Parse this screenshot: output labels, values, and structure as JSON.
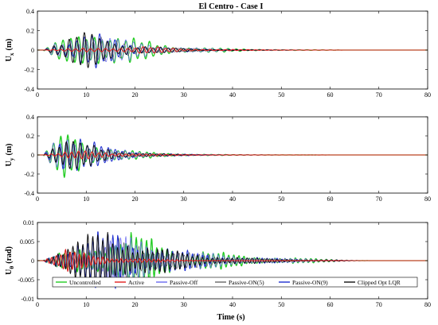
{
  "figure": {
    "title": "El Centro - Case I",
    "xlabel": "Time (s)"
  },
  "legend": {
    "placement": "bottom-center",
    "entries": [
      "Uncontrolled",
      "Active",
      "Passive-Off",
      "Passive-ON(5)",
      "Passive-ON(9)",
      "Clipped Opt LQR"
    ]
  },
  "chart_data": [
    {
      "type": "line",
      "ylabel_main": "U",
      "ylabel_sub": "x",
      "ylabel_unit": "(m)",
      "xlim": [
        0,
        80
      ],
      "ylim": [
        -0.4,
        0.4
      ],
      "x_ticks": [
        0,
        10,
        20,
        30,
        40,
        50,
        60,
        70,
        80
      ],
      "y_ticks": [
        "-0.4",
        "-0.2",
        "0",
        "0.2",
        "0.4"
      ],
      "y_tick_values": [
        -0.4,
        -0.2,
        0,
        0.2,
        0.4
      ],
      "grid": false,
      "duration": 60,
      "series": [
        {
          "name": "Uncontrolled",
          "color": "#22cc22",
          "width": 1.3,
          "freq": 0.62,
          "phase": 0.0,
          "peak_t": 12,
          "peak_amp": 0.26,
          "rise": 3.0,
          "decay": 10.0
        },
        {
          "name": "Passive-Off",
          "color": "#6a6af0",
          "width": 0.7,
          "freq": 0.62,
          "phase": 0.18,
          "peak_t": 12,
          "peak_amp": 0.22,
          "rise": 3.0,
          "decay": 9.5
        },
        {
          "name": "Passive-ON(5)",
          "color": "#666666",
          "width": 0.7,
          "freq": 0.63,
          "phase": 0.3,
          "peak_t": 11,
          "peak_amp": 0.18,
          "rise": 2.8,
          "decay": 8.5
        },
        {
          "name": "Passive-ON(9)",
          "color": "#1f2fd0",
          "width": 1.0,
          "freq": 0.64,
          "phase": 0.45,
          "peak_t": 11,
          "peak_amp": 0.2,
          "rise": 2.8,
          "decay": 8.0
        },
        {
          "name": "Clipped Opt LQR",
          "color": "#111111",
          "width": 1.0,
          "freq": 0.64,
          "phase": 0.6,
          "peak_t": 10,
          "peak_amp": 0.21,
          "rise": 2.5,
          "decay": 8.0
        },
        {
          "name": "Active",
          "color": "#e02020",
          "width": 1.1,
          "freq": 0.65,
          "phase": 1.1,
          "peak_t": 22,
          "peak_amp": 0.04,
          "rise": 8.0,
          "decay": 10.0
        }
      ]
    },
    {
      "type": "line",
      "ylabel_main": "U",
      "ylabel_sub": "y",
      "ylabel_unit": "(m)",
      "xlim": [
        0,
        80
      ],
      "ylim": [
        -0.4,
        0.4
      ],
      "x_ticks": [
        0,
        10,
        20,
        30,
        40,
        50,
        60,
        70,
        80
      ],
      "y_ticks": [
        "-0.4",
        "-0.2",
        "0",
        "0.2",
        "0.4"
      ],
      "y_tick_values": [
        -0.4,
        -0.2,
        0,
        0.2,
        0.4
      ],
      "grid": false,
      "duration": 60,
      "series": [
        {
          "name": "Uncontrolled",
          "color": "#22cc22",
          "width": 1.3,
          "freq": 0.68,
          "phase": 0.0,
          "peak_t": 6,
          "peak_amp": 0.27,
          "rise": 2.5,
          "decay": 8.0
        },
        {
          "name": "Passive-Off",
          "color": "#6a6af0",
          "width": 0.7,
          "freq": 0.68,
          "phase": 0.2,
          "peak_t": 6,
          "peak_amp": 0.24,
          "rise": 2.5,
          "decay": 7.5
        },
        {
          "name": "Passive-ON(5)",
          "color": "#666666",
          "width": 0.7,
          "freq": 0.69,
          "phase": 0.35,
          "peak_t": 6,
          "peak_amp": 0.2,
          "rise": 2.5,
          "decay": 7.0
        },
        {
          "name": "Passive-ON(9)",
          "color": "#1f2fd0",
          "width": 1.0,
          "freq": 0.7,
          "phase": 0.5,
          "peak_t": 6,
          "peak_amp": 0.3,
          "rise": 2.5,
          "decay": 7.0
        },
        {
          "name": "Clipped Opt LQR",
          "color": "#111111",
          "width": 1.0,
          "freq": 0.7,
          "phase": 0.7,
          "peak_t": 6,
          "peak_amp": 0.22,
          "rise": 2.5,
          "decay": 7.0
        },
        {
          "name": "Active",
          "color": "#e02020",
          "width": 1.1,
          "freq": 0.72,
          "phase": 1.2,
          "peak_t": 10,
          "peak_amp": 0.05,
          "rise": 4.0,
          "decay": 9.0
        }
      ]
    },
    {
      "type": "line",
      "ylabel_main": "U",
      "ylabel_sub": "θ",
      "ylabel_unit": "(rad)",
      "xlim": [
        0,
        80
      ],
      "ylim": [
        -0.01,
        0.01
      ],
      "x_ticks": [
        0,
        10,
        20,
        30,
        40,
        50,
        60,
        70,
        80
      ],
      "y_ticks": [
        "-0.01",
        "-0.005",
        "0",
        "0.005",
        "0.01"
      ],
      "y_tick_values": [
        -0.01,
        -0.005,
        0,
        0.005,
        0.01
      ],
      "grid": false,
      "duration": 62,
      "series": [
        {
          "name": "Uncontrolled",
          "color": "#22cc22",
          "width": 1.3,
          "freq": 0.95,
          "phase": 0.0,
          "peak_t": 20,
          "peak_amp": 0.0075,
          "rise": 6.0,
          "decay": 14.0
        },
        {
          "name": "Passive-Off",
          "color": "#6a6af0",
          "width": 0.7,
          "freq": 0.95,
          "phase": 0.25,
          "peak_t": 18,
          "peak_amp": 0.007,
          "rise": 6.0,
          "decay": 14.0
        },
        {
          "name": "Passive-ON(5)",
          "color": "#666666",
          "width": 0.7,
          "freq": 0.97,
          "phase": 0.4,
          "peak_t": 18,
          "peak_amp": 0.006,
          "rise": 5.5,
          "decay": 13.0
        },
        {
          "name": "Passive-ON(9)",
          "color": "#1f2fd0",
          "width": 1.0,
          "freq": 0.98,
          "phase": 0.6,
          "peak_t": 15,
          "peak_amp": 0.0085,
          "rise": 5.0,
          "decay": 13.0
        },
        {
          "name": "Clipped Opt LQR",
          "color": "#111111",
          "width": 1.0,
          "freq": 0.98,
          "phase": 0.8,
          "peak_t": 14,
          "peak_amp": 0.0088,
          "rise": 5.0,
          "decay": 12.0
        },
        {
          "name": "Active",
          "color": "#e02020",
          "width": 1.1,
          "freq": 1.05,
          "phase": 1.3,
          "peak_t": 6,
          "peak_amp": 0.003,
          "rise": 2.5,
          "decay": 9.0
        }
      ]
    }
  ]
}
